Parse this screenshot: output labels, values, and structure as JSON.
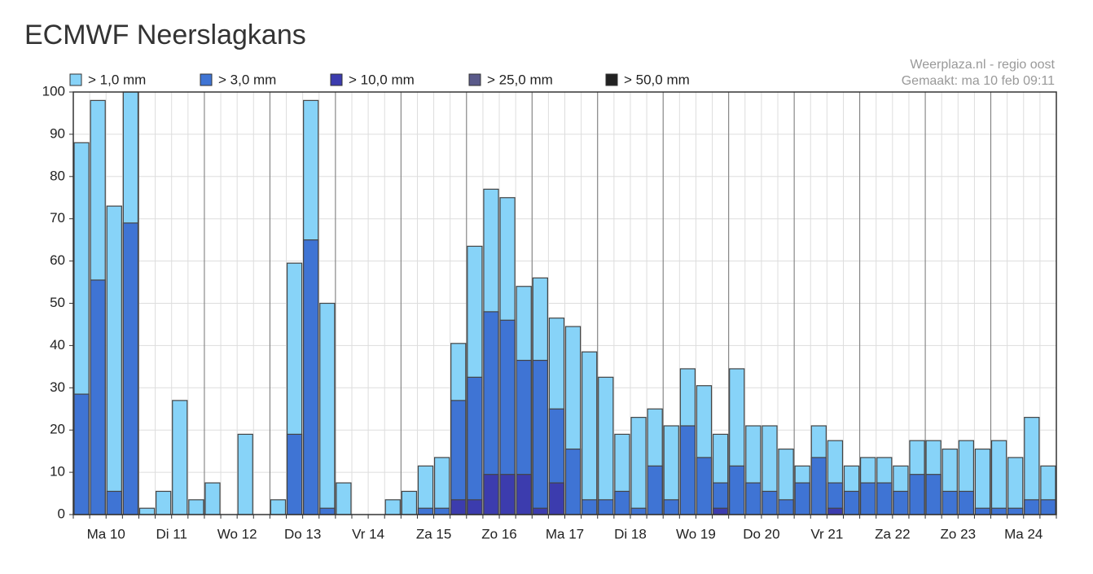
{
  "chart_data": {
    "type": "bar",
    "title": "ECMWF Neerslagkans",
    "source": "Weerplaza.nl - regio oost",
    "made": "Gemaakt: ma 10 feb 09:11",
    "categories": [
      "Ma 10",
      null,
      null,
      null,
      "Di 11",
      null,
      null,
      null,
      "Wo 12",
      null,
      null,
      null,
      "Do 13",
      null,
      null,
      null,
      "Vr 14",
      null,
      null,
      null,
      "Za 15",
      null,
      null,
      null,
      "Zo 16",
      null,
      null,
      null,
      "Ma 17",
      null,
      null,
      null,
      "Di 18",
      null,
      null,
      null,
      "Wo 19",
      null,
      null,
      null,
      "Do 20",
      null,
      null,
      null,
      "Vr 21",
      null,
      null,
      null,
      "Za 22",
      null,
      null,
      null,
      "Zo 23",
      null,
      null,
      null,
      "Ma 24",
      null,
      null,
      null
    ],
    "series": [
      {
        "name": "> 1,0 mm",
        "color": "#87d3f8",
        "values": [
          88,
          98,
          73,
          100,
          1.5,
          5.5,
          27,
          3.5,
          7.5,
          0,
          19,
          0,
          3.5,
          59.5,
          98,
          50,
          7.5,
          0,
          0,
          3.5,
          5.5,
          11.5,
          13.5,
          40.5,
          63.5,
          77,
          75,
          54,
          56,
          46.5,
          44.5,
          38.5,
          32.5,
          19,
          23,
          25,
          21,
          34.5,
          30.5,
          19,
          34.5,
          21,
          21,
          15.5,
          11.5,
          21,
          17.5,
          11.5,
          13.5,
          13.5,
          11.5,
          17.5,
          17.5,
          15.5,
          17.5,
          15.5,
          17.5,
          13.5,
          23,
          11.5
        ]
      },
      {
        "name": "> 3,0 mm",
        "color": "#3f74d4",
        "values": [
          28.5,
          55.5,
          5.5,
          69,
          0,
          0,
          0,
          0,
          0,
          0,
          0,
          0,
          0,
          19,
          65,
          1.5,
          0,
          0,
          0,
          0,
          0,
          1.5,
          1.5,
          27,
          32.5,
          48,
          46,
          36.5,
          36.5,
          25,
          15.5,
          3.5,
          3.5,
          5.5,
          1.5,
          11.5,
          3.5,
          21,
          13.5,
          7.5,
          11.5,
          7.5,
          5.5,
          3.5,
          7.5,
          13.5,
          7.5,
          5.5,
          7.5,
          7.5,
          5.5,
          9.5,
          9.5,
          5.5,
          5.5,
          1.5,
          1.5,
          1.5,
          3.5,
          3.5
        ]
      },
      {
        "name": "> 10,0 mm",
        "color": "#3c3cae",
        "values": [
          0,
          0,
          0,
          0,
          0,
          0,
          0,
          0,
          0,
          0,
          0,
          0,
          0,
          0,
          0,
          0,
          0,
          0,
          0,
          0,
          0,
          0,
          0,
          3.5,
          3.5,
          9.5,
          9.5,
          9.5,
          1.5,
          7.5,
          0,
          0,
          0,
          0,
          0,
          0,
          0,
          0,
          0,
          1.5,
          0,
          0,
          0,
          0,
          0,
          0,
          1.5,
          0,
          0,
          0,
          0,
          0,
          0,
          0,
          0,
          0,
          0,
          0,
          0,
          0
        ]
      },
      {
        "name": "> 25,0 mm",
        "color": "#5a5a8a",
        "values": [
          0,
          0,
          0,
          0,
          0,
          0,
          0,
          0,
          0,
          0,
          0,
          0,
          0,
          0,
          0,
          0,
          0,
          0,
          0,
          0,
          0,
          0,
          0,
          0,
          0,
          0,
          0,
          0,
          0,
          0,
          0,
          0,
          0,
          0,
          0,
          0,
          0,
          0,
          0,
          0,
          0,
          0,
          0,
          0,
          0,
          0,
          0,
          0,
          0,
          0,
          0,
          0,
          0,
          0,
          0,
          0,
          0,
          0,
          0,
          0
        ]
      },
      {
        "name": "> 50,0 mm",
        "color": "#222222",
        "values": [
          0,
          0,
          0,
          0,
          0,
          0,
          0,
          0,
          0,
          0,
          0,
          0,
          0,
          0,
          0,
          0,
          0,
          0,
          0,
          0,
          0,
          0,
          0,
          0,
          0,
          0,
          0,
          0,
          0,
          0,
          0,
          0,
          0,
          0,
          0,
          0,
          0,
          0,
          0,
          0,
          0,
          0,
          0,
          0,
          0,
          0,
          0,
          0,
          0,
          0,
          0,
          0,
          0,
          0,
          0,
          0,
          0,
          0,
          0,
          0
        ]
      }
    ],
    "ylim": [
      0,
      100
    ],
    "yticks": [
      0,
      10,
      20,
      30,
      40,
      50,
      60,
      70,
      80,
      90,
      100
    ],
    "grid": true
  }
}
